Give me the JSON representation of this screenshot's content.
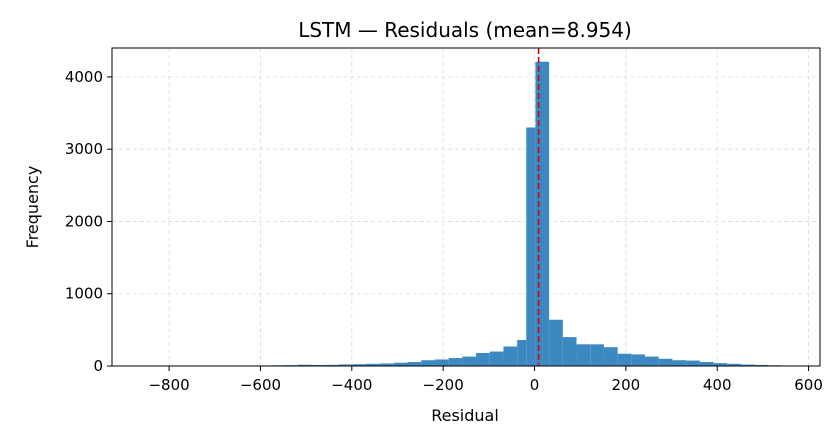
{
  "chart_data": {
    "type": "bar",
    "subtype": "histogram",
    "title": "LSTM — Residuals (mean=8.954)",
    "xlabel": "Residual",
    "ylabel": "Frequency",
    "xlim": [
      -925,
      625
    ],
    "ylim": [
      0,
      4400
    ],
    "xticks": [
      -800,
      -600,
      -400,
      -200,
      0,
      200,
      400,
      600
    ],
    "xtick_labels": [
      "−800",
      "−600",
      "−400",
      "−200",
      "0",
      "200",
      "400",
      "600"
    ],
    "yticks": [
      0,
      1000,
      2000,
      3000,
      4000
    ],
    "ytick_labels": [
      "0",
      "1000",
      "2000",
      "3000",
      "4000"
    ],
    "grid": true,
    "bar_color": "#3c89c2",
    "mean_line": {
      "x": 8.954,
      "color": "#dd0000",
      "style": "dashed"
    },
    "bins": [
      {
        "x0": -878,
        "x1": -848,
        "count": 2
      },
      {
        "x0": -848,
        "x1": -818,
        "count": 2
      },
      {
        "x0": -818,
        "x1": -788,
        "count": 3
      },
      {
        "x0": -788,
        "x1": -758,
        "count": 3
      },
      {
        "x0": -758,
        "x1": -728,
        "count": 4
      },
      {
        "x0": -728,
        "x1": -698,
        "count": 5
      },
      {
        "x0": -698,
        "x1": -668,
        "count": 5
      },
      {
        "x0": -668,
        "x1": -638,
        "count": 6
      },
      {
        "x0": -638,
        "x1": -608,
        "count": 7
      },
      {
        "x0": -608,
        "x1": -578,
        "count": 8
      },
      {
        "x0": -578,
        "x1": -548,
        "count": 10
      },
      {
        "x0": -548,
        "x1": -518,
        "count": 12
      },
      {
        "x0": -518,
        "x1": -488,
        "count": 18
      },
      {
        "x0": -488,
        "x1": -458,
        "count": 14
      },
      {
        "x0": -458,
        "x1": -428,
        "count": 16
      },
      {
        "x0": -428,
        "x1": -398,
        "count": 22
      },
      {
        "x0": -398,
        "x1": -368,
        "count": 25
      },
      {
        "x0": -368,
        "x1": -338,
        "count": 30
      },
      {
        "x0": -338,
        "x1": -308,
        "count": 35
      },
      {
        "x0": -308,
        "x1": -278,
        "count": 45
      },
      {
        "x0": -278,
        "x1": -248,
        "count": 55
      },
      {
        "x0": -248,
        "x1": -218,
        "count": 80
      },
      {
        "x0": -218,
        "x1": -188,
        "count": 90
      },
      {
        "x0": -188,
        "x1": -158,
        "count": 110
      },
      {
        "x0": -158,
        "x1": -128,
        "count": 130
      },
      {
        "x0": -128,
        "x1": -98,
        "count": 180
      },
      {
        "x0": -98,
        "x1": -68,
        "count": 200
      },
      {
        "x0": -68,
        "x1": -38,
        "count": 270
      },
      {
        "x0": -38,
        "x1": -18,
        "count": 360
      },
      {
        "x0": -18,
        "x1": 2,
        "count": 3300
      },
      {
        "x0": 2,
        "x1": 32,
        "count": 4210
      },
      {
        "x0": 32,
        "x1": 62,
        "count": 640
      },
      {
        "x0": 62,
        "x1": 92,
        "count": 400
      },
      {
        "x0": 92,
        "x1": 122,
        "count": 300
      },
      {
        "x0": 122,
        "x1": 152,
        "count": 300
      },
      {
        "x0": 152,
        "x1": 182,
        "count": 260
      },
      {
        "x0": 182,
        "x1": 212,
        "count": 170
      },
      {
        "x0": 212,
        "x1": 242,
        "count": 160
      },
      {
        "x0": 242,
        "x1": 272,
        "count": 130
      },
      {
        "x0": 272,
        "x1": 302,
        "count": 100
      },
      {
        "x0": 302,
        "x1": 332,
        "count": 80
      },
      {
        "x0": 332,
        "x1": 362,
        "count": 75
      },
      {
        "x0": 362,
        "x1": 392,
        "count": 55
      },
      {
        "x0": 392,
        "x1": 422,
        "count": 40
      },
      {
        "x0": 422,
        "x1": 452,
        "count": 30
      },
      {
        "x0": 452,
        "x1": 482,
        "count": 20
      },
      {
        "x0": 482,
        "x1": 512,
        "count": 15
      },
      {
        "x0": 512,
        "x1": 542,
        "count": 10
      },
      {
        "x0": 542,
        "x1": 572,
        "count": 7
      },
      {
        "x0": 572,
        "x1": 602,
        "count": 4
      }
    ]
  }
}
